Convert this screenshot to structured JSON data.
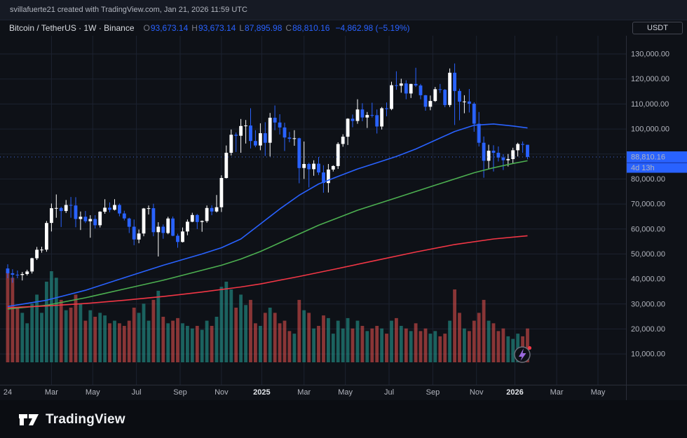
{
  "attribution": {
    "text": "svillafuerte21 created with TradingView.com, Jan 21, 2026 11:59 UTC"
  },
  "symbol_bar": {
    "title": "Bitcoin / TetherUS · 1W · Binance",
    "o_label": "O",
    "o_value": "93,673.14",
    "h_label": "H",
    "h_value": "93,673.14",
    "l_label": "L",
    "l_value": "87,895.98",
    "c_label": "C",
    "c_value": "88,810.16",
    "change": "−4,862.98 (−5.19%)",
    "currency_button": "USDT"
  },
  "price_scale": {
    "labels": [
      {
        "text": "130,000.00",
        "value": 130000
      },
      {
        "text": "120,000.00",
        "value": 120000
      },
      {
        "text": "110,000.00",
        "value": 110000
      },
      {
        "text": "100,000.00",
        "value": 100000
      },
      {
        "text": "80,000.00",
        "value": 80000
      },
      {
        "text": "70,000.00",
        "value": 70000
      },
      {
        "text": "60,000.00",
        "value": 60000
      },
      {
        "text": "50,000.00",
        "value": 50000
      },
      {
        "text": "40,000.00",
        "value": 40000
      },
      {
        "text": "30,000.00",
        "value": 30000
      },
      {
        "text": "20,000.00",
        "value": 20000
      },
      {
        "text": "10,000.00",
        "value": 10000
      }
    ],
    "current_price_label": "88,810.16",
    "countdown_label": "4d 13h"
  },
  "time_scale": {
    "labels": [
      {
        "text": "24",
        "week": 0,
        "major": false
      },
      {
        "text": "Mar",
        "week": 9,
        "major": false
      },
      {
        "text": "May",
        "week": 17.5,
        "major": false
      },
      {
        "text": "Jul",
        "week": 26.5,
        "major": false
      },
      {
        "text": "Sep",
        "week": 35.5,
        "major": false
      },
      {
        "text": "Nov",
        "week": 44,
        "major": false
      },
      {
        "text": "2025",
        "week": 52.3,
        "major": true
      },
      {
        "text": "Mar",
        "week": 61,
        "major": false
      },
      {
        "text": "May",
        "week": 69.5,
        "major": false
      },
      {
        "text": "Jul",
        "week": 78.5,
        "major": false
      },
      {
        "text": "Sep",
        "week": 87.5,
        "major": false
      },
      {
        "text": "Nov",
        "week": 96.5,
        "major": false
      },
      {
        "text": "2026",
        "week": 104.4,
        "major": true
      },
      {
        "text": "Mar",
        "week": 113,
        "major": false
      },
      {
        "text": "May",
        "week": 121.5,
        "major": false
      }
    ]
  },
  "footer": {
    "brand": "TradingView"
  },
  "colors": {
    "background": "#0e1117",
    "grid": "#1c2230",
    "border": "#2a2e39",
    "accent": "#2962ff",
    "axis_text": "#b2b5be",
    "up": "#ffffff",
    "down": "#2962ff",
    "volume_up": "rgba(38,166,154,0.55)",
    "volume_down": "rgba(239,83,80,0.55)",
    "marker_ring": "#6a6d78",
    "marker_bolt": "#9c6ade",
    "marker_dot": "#f23645"
  },
  "chart_data": {
    "type": "candlestick",
    "title": "Bitcoin / TetherUS · 1W · Binance",
    "interval": "1W",
    "ylim": [
      -2300,
      137300
    ],
    "grid_price_range": [
      10000,
      130000
    ],
    "grid_price_step": 10000,
    "current_price": 88810.16,
    "last_candle": {
      "open": 93673.14,
      "high": 93673.14,
      "low": 87895.98,
      "close": 88810.16,
      "change": -4862.98,
      "change_pct": -5.19
    },
    "candle_colors": {
      "up": "#ffffff",
      "down": "#2962ff"
    },
    "volume_colors": {
      "up": "rgba(38,166,154,0.55)",
      "down": "rgba(239,83,80,0.55)"
    },
    "candles": [
      [
        44200,
        45900,
        40300,
        42300,
        700
      ],
      [
        42300,
        43900,
        38500,
        41700,
        650
      ],
      [
        41700,
        43400,
        40300,
        41600,
        420
      ],
      [
        41600,
        42800,
        39400,
        42000,
        380
      ],
      [
        42000,
        43700,
        41400,
        43000,
        300
      ],
      [
        43000,
        48500,
        42200,
        48300,
        450
      ],
      [
        48300,
        52800,
        47600,
        51700,
        520
      ],
      [
        51700,
        52900,
        50500,
        51750,
        380
      ],
      [
        51750,
        63200,
        50900,
        62400,
        620
      ],
      [
        62400,
        70200,
        59000,
        68300,
        700
      ],
      [
        68300,
        73800,
        64500,
        68400,
        650
      ],
      [
        68400,
        68900,
        60800,
        67200,
        480
      ],
      [
        67200,
        71600,
        66400,
        69600,
        400
      ],
      [
        69600,
        72800,
        64500,
        69400,
        420
      ],
      [
        69400,
        72700,
        60700,
        64000,
        520
      ],
      [
        64000,
        67000,
        59600,
        64900,
        450
      ],
      [
        64900,
        67200,
        62400,
        63100,
        320
      ],
      [
        63100,
        65500,
        56500,
        64000,
        400
      ],
      [
        64000,
        65500,
        60200,
        61500,
        350
      ],
      [
        61500,
        67100,
        60600,
        66900,
        380
      ],
      [
        66900,
        71900,
        66100,
        68500,
        360
      ],
      [
        68500,
        70600,
        66700,
        67700,
        300
      ],
      [
        67700,
        71900,
        67400,
        69600,
        320
      ],
      [
        69600,
        70200,
        65100,
        66200,
        300
      ],
      [
        66200,
        67300,
        63400,
        64200,
        280
      ],
      [
        64200,
        64500,
        58400,
        60900,
        320
      ],
      [
        60900,
        63800,
        53500,
        55800,
        420
      ],
      [
        55800,
        59800,
        54300,
        58200,
        380
      ],
      [
        58200,
        68400,
        57100,
        68200,
        450
      ],
      [
        68200,
        69400,
        65800,
        68300,
        320
      ],
      [
        68300,
        70100,
        57100,
        58700,
        480
      ],
      [
        58700,
        62700,
        49000,
        60900,
        550
      ],
      [
        60900,
        61800,
        56100,
        58400,
        350
      ],
      [
        58400,
        64900,
        57900,
        64200,
        300
      ],
      [
        64200,
        65000,
        57100,
        57300,
        320
      ],
      [
        57300,
        58100,
        52500,
        54800,
        340
      ],
      [
        54800,
        60600,
        54600,
        59000,
        300
      ],
      [
        59000,
        63800,
        57500,
        62900,
        280
      ],
      [
        62900,
        66500,
        62700,
        65600,
        260
      ],
      [
        65600,
        66000,
        60000,
        62800,
        280
      ],
      [
        62800,
        63400,
        58900,
        63200,
        250
      ],
      [
        63200,
        69400,
        62500,
        68400,
        320
      ],
      [
        68400,
        69500,
        65500,
        67000,
        280
      ],
      [
        67000,
        73600,
        66600,
        68700,
        350
      ],
      [
        68700,
        81500,
        66800,
        80400,
        580
      ],
      [
        80400,
        93400,
        80200,
        90500,
        620
      ],
      [
        90500,
        99800,
        89400,
        97700,
        560
      ],
      [
        97700,
        98600,
        90800,
        97300,
        420
      ],
      [
        97300,
        104000,
        90500,
        101200,
        520
      ],
      [
        101200,
        103600,
        94200,
        101400,
        440
      ],
      [
        101400,
        108300,
        92200,
        95200,
        480
      ],
      [
        95200,
        99500,
        92700,
        93400,
        300
      ],
      [
        93400,
        102300,
        91500,
        98300,
        280
      ],
      [
        98300,
        102700,
        89200,
        94500,
        380
      ],
      [
        94500,
        106400,
        89000,
        104500,
        420
      ],
      [
        104500,
        109400,
        99500,
        102600,
        380
      ],
      [
        102600,
        105900,
        97800,
        100600,
        300
      ],
      [
        100600,
        102500,
        91200,
        96600,
        320
      ],
      [
        96600,
        98800,
        94700,
        96100,
        240
      ],
      [
        96100,
        99500,
        93300,
        96300,
        220
      ],
      [
        96300,
        96500,
        78300,
        84400,
        480
      ],
      [
        84400,
        95000,
        80000,
        86000,
        400
      ],
      [
        86000,
        86500,
        76600,
        83900,
        380
      ],
      [
        83900,
        87500,
        81300,
        86100,
        260
      ],
      [
        86100,
        88800,
        81600,
        82600,
        280
      ],
      [
        82600,
        85500,
        74500,
        78400,
        360
      ],
      [
        78400,
        86000,
        74600,
        83800,
        340
      ],
      [
        83800,
        85500,
        83000,
        85200,
        220
      ],
      [
        85200,
        94700,
        84000,
        94000,
        320
      ],
      [
        94000,
        97900,
        92900,
        96900,
        260
      ],
      [
        96900,
        104300,
        93600,
        104100,
        340
      ],
      [
        104100,
        105800,
        100700,
        103200,
        260
      ],
      [
        103200,
        111900,
        102100,
        107800,
        320
      ],
      [
        107800,
        110300,
        103100,
        104600,
        280
      ],
      [
        104600,
        106800,
        100400,
        105600,
        240
      ],
      [
        105600,
        110500,
        104600,
        105500,
        260
      ],
      [
        105500,
        107800,
        98200,
        101000,
        280
      ],
      [
        101000,
        108800,
        99800,
        108300,
        260
      ],
      [
        108300,
        110600,
        105100,
        108000,
        220
      ],
      [
        108000,
        118900,
        107500,
        117500,
        320
      ],
      [
        117500,
        123100,
        115700,
        117300,
        340
      ],
      [
        117300,
        120100,
        114500,
        118200,
        280
      ],
      [
        118200,
        119500,
        111900,
        114200,
        260
      ],
      [
        114200,
        118100,
        112400,
        118000,
        240
      ],
      [
        118000,
        124500,
        116800,
        117400,
        300
      ],
      [
        117400,
        118000,
        111900,
        113500,
        240
      ],
      [
        113500,
        113600,
        107300,
        108900,
        260
      ],
      [
        108900,
        113400,
        107500,
        111200,
        220
      ],
      [
        111200,
        116800,
        110800,
        115900,
        240
      ],
      [
        115900,
        118000,
        114400,
        115700,
        200
      ],
      [
        115700,
        116000,
        108700,
        109600,
        220
      ],
      [
        109600,
        124200,
        108800,
        122500,
        320
      ],
      [
        122500,
        126200,
        101600,
        115200,
        560
      ],
      [
        115200,
        116100,
        103500,
        110900,
        380
      ],
      [
        110900,
        113500,
        106300,
        111000,
        260
      ],
      [
        111000,
        116000,
        106600,
        110100,
        240
      ],
      [
        110100,
        110700,
        98900,
        102100,
        320
      ],
      [
        102100,
        106800,
        93000,
        94500,
        380
      ],
      [
        94500,
        97000,
        80500,
        87300,
        480
      ],
      [
        87300,
        93700,
        83900,
        91300,
        320
      ],
      [
        91300,
        93500,
        83000,
        90500,
        300
      ],
      [
        90500,
        93000,
        87000,
        88600,
        240
      ],
      [
        88600,
        89900,
        83600,
        87500,
        260
      ],
      [
        87500,
        90000,
        85000,
        88000,
        200
      ],
      [
        88000,
        92500,
        86000,
        91500,
        180
      ],
      [
        91500,
        94500,
        89000,
        94000,
        220
      ],
      [
        94000,
        95000,
        90500,
        93700,
        200
      ],
      [
        93673.14,
        93673.14,
        87895.98,
        88810.16,
        260
      ]
    ],
    "indicators": [
      {
        "name": "ma-fast-blue",
        "color": "#2962ff",
        "points": [
          [
            0,
            29000
          ],
          [
            8,
            31500
          ],
          [
            16,
            35500
          ],
          [
            24,
            40500
          ],
          [
            32,
            45500
          ],
          [
            40,
            50000
          ],
          [
            44,
            52500
          ],
          [
            48,
            56000
          ],
          [
            52,
            62000
          ],
          [
            56,
            68000
          ],
          [
            60,
            73500
          ],
          [
            64,
            78000
          ],
          [
            68,
            81000
          ],
          [
            72,
            84000
          ],
          [
            76,
            86500
          ],
          [
            80,
            89000
          ],
          [
            84,
            92000
          ],
          [
            88,
            95500
          ],
          [
            92,
            99000
          ],
          [
            96,
            101500
          ],
          [
            100,
            102000
          ],
          [
            104,
            101200
          ],
          [
            107,
            100400
          ]
        ]
      },
      {
        "name": "ma-mid-green",
        "color": "#4caf50",
        "points": [
          [
            0,
            28000
          ],
          [
            8,
            29500
          ],
          [
            16,
            32500
          ],
          [
            24,
            36000
          ],
          [
            32,
            39500
          ],
          [
            40,
            43500
          ],
          [
            44,
            45500
          ],
          [
            48,
            48000
          ],
          [
            52,
            51000
          ],
          [
            56,
            54500
          ],
          [
            60,
            58000
          ],
          [
            64,
            61500
          ],
          [
            68,
            64500
          ],
          [
            72,
            67500
          ],
          [
            76,
            70000
          ],
          [
            80,
            72500
          ],
          [
            84,
            75000
          ],
          [
            88,
            77500
          ],
          [
            92,
            80000
          ],
          [
            96,
            82500
          ],
          [
            100,
            84500
          ],
          [
            104,
            86200
          ],
          [
            107,
            87300
          ]
        ]
      },
      {
        "name": "ma-slow-red",
        "color": "#f23645",
        "points": [
          [
            0,
            28500
          ],
          [
            8,
            29200
          ],
          [
            16,
            30200
          ],
          [
            24,
            31500
          ],
          [
            32,
            33000
          ],
          [
            40,
            34800
          ],
          [
            48,
            36800
          ],
          [
            52,
            38000
          ],
          [
            60,
            41000
          ],
          [
            68,
            44200
          ],
          [
            76,
            47500
          ],
          [
            84,
            50800
          ],
          [
            92,
            53800
          ],
          [
            100,
            56000
          ],
          [
            107,
            57300
          ]
        ]
      }
    ]
  }
}
